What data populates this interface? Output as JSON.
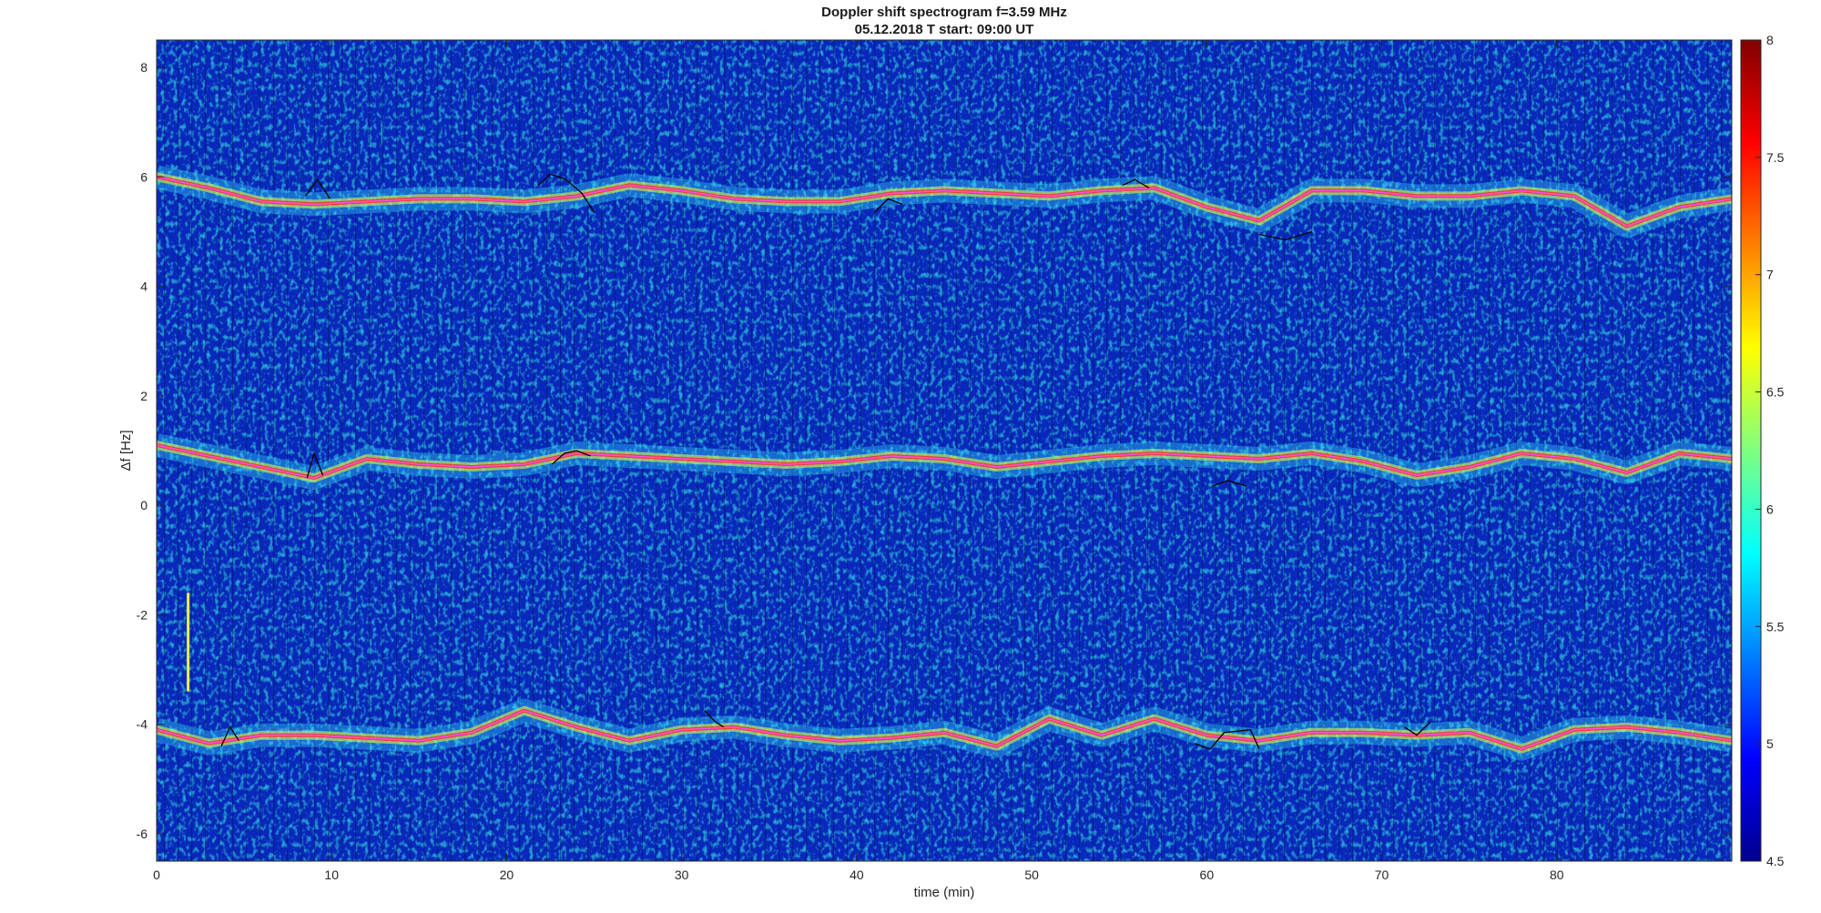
{
  "chart_data": {
    "type": "heatmap",
    "title": "Doppler shift spectrogram f=3.59 MHz",
    "subtitle": "05.12.2018   T start: 09:00 UT",
    "xlabel": "time (min)",
    "ylabel": "Δf [Hz]",
    "xlim": [
      0,
      90
    ],
    "ylim": [
      -6.5,
      8.5
    ],
    "x_ticks": [
      0,
      10,
      20,
      30,
      40,
      50,
      60,
      70,
      80
    ],
    "y_ticks": [
      -6,
      -4,
      -2,
      0,
      2,
      4,
      6,
      8
    ],
    "colorbar": {
      "colormap": "jet",
      "range": [
        4.5,
        8
      ],
      "ticks": [
        "4.5",
        "5",
        "5.5",
        "6",
        "6.5",
        "7",
        "7.5",
        "8"
      ]
    },
    "traces": [
      {
        "color": "#ff4fe0",
        "x": [
          0,
          3,
          6,
          9,
          12,
          15,
          18,
          21,
          24,
          27,
          30,
          33,
          36,
          39,
          42,
          45,
          48,
          51,
          54,
          57,
          60,
          63,
          66,
          69,
          72,
          75,
          78,
          81,
          84,
          87,
          90
        ],
        "y": [
          6.0,
          5.8,
          5.55,
          5.5,
          5.55,
          5.6,
          5.6,
          5.55,
          5.65,
          5.85,
          5.75,
          5.6,
          5.55,
          5.55,
          5.7,
          5.75,
          5.7,
          5.65,
          5.75,
          5.8,
          5.45,
          5.2,
          5.75,
          5.75,
          5.65,
          5.65,
          5.75,
          5.65,
          5.1,
          5.45,
          5.6
        ]
      },
      {
        "color": "#ff4fe0",
        "x": [
          0,
          3,
          6,
          9,
          12,
          15,
          18,
          21,
          24,
          27,
          30,
          33,
          36,
          39,
          42,
          45,
          48,
          51,
          54,
          57,
          60,
          63,
          66,
          69,
          72,
          75,
          78,
          81,
          84,
          87,
          90
        ],
        "y": [
          1.1,
          0.9,
          0.7,
          0.5,
          0.85,
          0.75,
          0.7,
          0.75,
          0.95,
          0.9,
          0.85,
          0.8,
          0.75,
          0.8,
          0.9,
          0.85,
          0.7,
          0.8,
          0.9,
          0.95,
          0.9,
          0.85,
          0.95,
          0.8,
          0.55,
          0.7,
          0.95,
          0.85,
          0.6,
          0.95,
          0.85
        ]
      },
      {
        "color": "#ff4fe0",
        "x": [
          0,
          3,
          6,
          9,
          12,
          15,
          18,
          21,
          24,
          27,
          30,
          33,
          36,
          39,
          42,
          45,
          48,
          51,
          54,
          57,
          60,
          63,
          66,
          69,
          72,
          75,
          78,
          81,
          84,
          87,
          90
        ],
        "y": [
          -4.1,
          -4.35,
          -4.2,
          -4.2,
          -4.25,
          -4.3,
          -4.15,
          -3.75,
          -4.05,
          -4.3,
          -4.1,
          -4.05,
          -4.2,
          -4.3,
          -4.25,
          -4.15,
          -4.4,
          -3.9,
          -4.2,
          -3.9,
          -4.2,
          -4.3,
          -4.15,
          -4.15,
          -4.2,
          -4.15,
          -4.45,
          -4.1,
          -4.05,
          -4.15,
          -4.3
        ]
      }
    ],
    "event_markers": [
      {
        "x": [
          8.5,
          9.2,
          9.9
        ],
        "y": [
          5.65,
          5.95,
          5.6
        ]
      },
      {
        "x": [
          21.8,
          22.5,
          23.4,
          24.3,
          25.0
        ],
        "y": [
          5.85,
          6.05,
          5.95,
          5.7,
          5.35
        ]
      },
      {
        "x": [
          41.0,
          41.8,
          42.6
        ],
        "y": [
          5.35,
          5.6,
          5.5
        ]
      },
      {
        "x": [
          55.2,
          55.9,
          56.7
        ],
        "y": [
          5.85,
          5.95,
          5.8
        ]
      },
      {
        "x": [
          63.0,
          64.5,
          66.0
        ],
        "y": [
          4.95,
          4.85,
          5.0
        ]
      },
      {
        "x": [
          8.6,
          9.0,
          9.5
        ],
        "y": [
          0.5,
          0.95,
          0.55
        ]
      },
      {
        "x": [
          22.6,
          23.3,
          24.0,
          24.8
        ],
        "y": [
          0.75,
          0.95,
          1.0,
          0.9
        ]
      },
      {
        "x": [
          60.3,
          61.2,
          62.3
        ],
        "y": [
          0.35,
          0.45,
          0.35
        ]
      },
      {
        "x": [
          3.7,
          4.2,
          4.7
        ],
        "y": [
          -4.4,
          -4.05,
          -4.3
        ]
      },
      {
        "x": [
          31.3,
          31.9,
          32.4
        ],
        "y": [
          -3.75,
          -3.95,
          -4.05
        ]
      },
      {
        "x": [
          59.3,
          60.2,
          61.0,
          62.5,
          63.0
        ],
        "y": [
          -4.35,
          -4.45,
          -4.15,
          -4.1,
          -4.45
        ]
      },
      {
        "x": [
          71.3,
          72.0,
          72.8
        ],
        "y": [
          -4.05,
          -4.2,
          -3.95
        ]
      }
    ],
    "accent_marker": {
      "x": 1.8,
      "y": [
        -3.4,
        -1.6
      ],
      "color": "#e7f04a"
    }
  }
}
